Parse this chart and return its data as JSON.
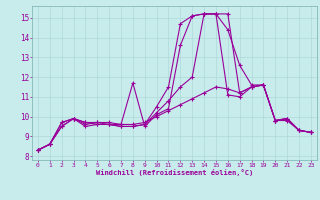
{
  "xlabel": "Windchill (Refroidissement éolien,°C)",
  "bg_color": "#c8ecec",
  "grid_color": "#b0d8d8",
  "line_color": "#990099",
  "xlim": [
    -0.5,
    23.5
  ],
  "ylim": [
    7.8,
    15.6
  ],
  "xticks": [
    0,
    1,
    2,
    3,
    4,
    5,
    6,
    7,
    8,
    9,
    10,
    11,
    12,
    13,
    14,
    15,
    16,
    17,
    18,
    19,
    20,
    21,
    22,
    23
  ],
  "yticks": [
    8,
    9,
    10,
    11,
    12,
    13,
    14,
    15
  ],
  "line1_x": [
    0,
    1,
    2,
    3,
    4,
    5,
    6,
    7,
    8,
    9,
    10,
    11,
    12,
    13,
    14,
    15,
    16,
    17,
    18,
    19,
    20,
    21,
    22,
    23
  ],
  "line1_y": [
    8.3,
    8.6,
    9.5,
    9.9,
    9.7,
    9.6,
    9.6,
    9.5,
    9.5,
    9.6,
    10.5,
    11.5,
    14.7,
    15.1,
    15.2,
    15.2,
    14.4,
    12.6,
    11.6,
    11.6,
    9.8,
    9.8,
    9.3,
    9.2
  ],
  "line2_x": [
    0,
    1,
    2,
    3,
    4,
    5,
    6,
    7,
    8,
    9,
    10,
    11,
    12,
    13,
    14,
    15,
    16,
    17,
    18,
    19,
    20,
    21,
    22,
    23
  ],
  "line2_y": [
    8.3,
    8.6,
    9.7,
    9.9,
    9.6,
    9.7,
    9.7,
    9.6,
    11.7,
    9.5,
    10.1,
    10.4,
    13.6,
    15.1,
    15.2,
    15.2,
    11.1,
    11.0,
    11.5,
    11.6,
    9.8,
    9.9,
    9.3,
    9.2
  ],
  "line3_x": [
    0,
    1,
    2,
    3,
    4,
    5,
    6,
    7,
    8,
    9,
    10,
    11,
    12,
    13,
    14,
    15,
    16,
    17,
    18,
    19,
    20,
    21,
    22,
    23
  ],
  "line3_y": [
    8.3,
    8.6,
    9.7,
    9.9,
    9.5,
    9.6,
    9.6,
    9.5,
    9.5,
    9.6,
    10.2,
    10.8,
    11.5,
    12.0,
    15.2,
    15.2,
    15.2,
    11.2,
    11.5,
    11.6,
    9.8,
    9.9,
    9.3,
    9.2
  ],
  "line4_x": [
    0,
    1,
    2,
    3,
    4,
    5,
    6,
    7,
    8,
    9,
    10,
    11,
    12,
    13,
    14,
    15,
    16,
    17,
    18,
    19,
    20,
    21,
    22,
    23
  ],
  "line4_y": [
    8.3,
    8.6,
    9.5,
    9.9,
    9.7,
    9.7,
    9.6,
    9.6,
    9.6,
    9.7,
    10.0,
    10.3,
    10.6,
    10.9,
    11.2,
    11.5,
    11.4,
    11.2,
    11.5,
    11.6,
    9.8,
    9.9,
    9.3,
    9.2
  ]
}
